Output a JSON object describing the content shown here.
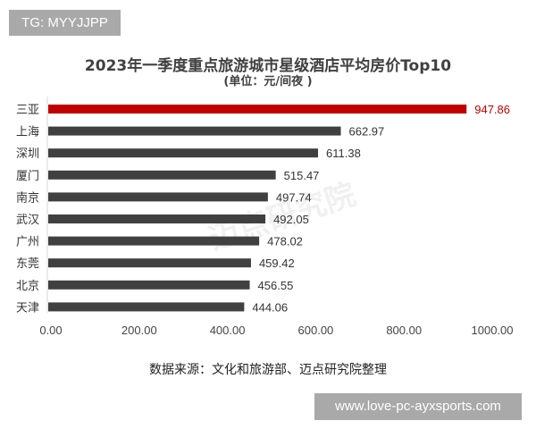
{
  "tg_label": "TG: MYYJJPP",
  "site_label": "www.love-pc-ayxsports.com",
  "watermark": "迈点研究院",
  "source": "数据来源：文化和旅游部、迈点研究院整理",
  "colors": {
    "highlight": "#c00000",
    "bar": "#404040"
  },
  "chart_data": {
    "type": "bar",
    "orientation": "horizontal",
    "title": "2023年一季度重点旅游城市星级酒店平均房价Top10",
    "subtitle": "(单位：元/间夜 )",
    "categories": [
      "三亚",
      "上海",
      "深圳",
      "厦门",
      "南京",
      "武汉",
      "广州",
      "东莞",
      "北京",
      "天津"
    ],
    "values": [
      947.86,
      662.97,
      611.38,
      515.47,
      497.74,
      492.05,
      478.02,
      459.42,
      456.55,
      444.06
    ],
    "value_labels": [
      "947.86",
      "662.97",
      "611.38",
      "515.47",
      "497.74",
      "492.05",
      "478.02",
      "459.42",
      "456.55",
      "444.06"
    ],
    "xlim": [
      0,
      1000
    ],
    "xticks": [
      "0.00",
      "200.00",
      "400.00",
      "600.00",
      "800.00",
      "1000.00"
    ],
    "grid": false,
    "legend": "none"
  }
}
